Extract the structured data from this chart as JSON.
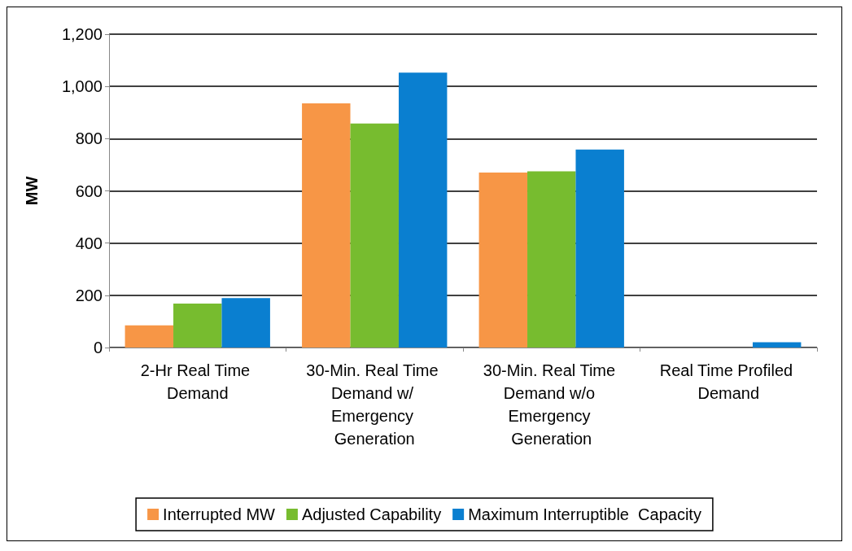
{
  "chart_data": {
    "type": "bar",
    "ylabel": "MW",
    "categories": [
      "2-Hr Real Time Demand",
      "30-Min. Real Time Demand w/ Emergency Generation",
      "30-Min. Real Time Demand w/o Emergency Generation",
      "Real Time Profiled Demand"
    ],
    "series": [
      {
        "name": "Interrupted MW",
        "color": "#f79646",
        "values": [
          85,
          935,
          670,
          0
        ]
      },
      {
        "name": "Adjusted Capability",
        "color": "#77bc2f",
        "values": [
          168,
          858,
          675,
          0
        ]
      },
      {
        "name": "Maximum Interruptible  Capacity",
        "color": "#0a7fd0",
        "values": [
          189,
          1053,
          758,
          20
        ]
      }
    ],
    "ylim": [
      0,
      1200
    ],
    "yticks": [
      0,
      200,
      400,
      600,
      800,
      {
        "value": 1000,
        "label": "1,000"
      },
      {
        "value": 1200,
        "label": "1,200"
      }
    ],
    "grid": "y",
    "legend": "bottom"
  }
}
